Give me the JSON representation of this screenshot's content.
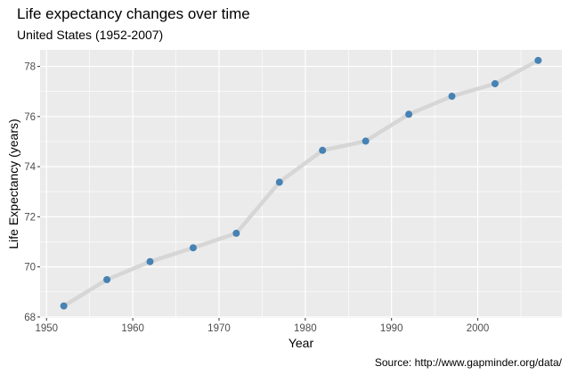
{
  "chart_data": {
    "type": "line",
    "title": "Life expectancy changes over time",
    "subtitle": "United States (1952-2007)",
    "caption": "Source: http://www.gapminder.org/data/",
    "xlabel": "Year",
    "ylabel": "Life Expectancy (years)",
    "xlim": [
      1949.25,
      2009.75
    ],
    "ylim": [
      67.96,
      78.66
    ],
    "x_ticks": [
      1950,
      1960,
      1970,
      1980,
      1990,
      2000
    ],
    "y_ticks": [
      68,
      70,
      72,
      74,
      76,
      78
    ],
    "grid": true,
    "background": "#EBEBEB",
    "line_color": "#D6D6D6",
    "point_color": "#4682B4",
    "series": [
      {
        "x": [
          1952,
          1957,
          1962,
          1967,
          1972,
          1977,
          1982,
          1987,
          1992,
          1997,
          2002,
          2007
        ],
        "y": [
          68.44,
          69.49,
          70.21,
          70.76,
          71.34,
          73.38,
          74.65,
          75.02,
          76.09,
          76.81,
          77.31,
          78.24
        ]
      }
    ]
  }
}
